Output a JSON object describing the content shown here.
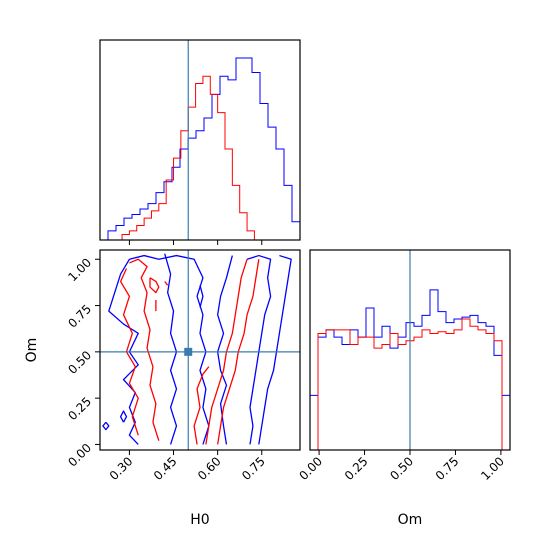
{
  "figure": {
    "type": "corner",
    "colors": {
      "truth": "#3b7bad",
      "series_a": "#0000ff",
      "series_b": "#ff0000"
    }
  },
  "chart_data": [
    {
      "panel": "H0-marginal",
      "type": "histogram",
      "x_range": [
        0.2,
        0.88
      ],
      "y_range": [
        0,
        1.0
      ],
      "truth": 0.5,
      "series": [
        {
          "color": "#0000ff",
          "values": [
            0.0,
            0.05,
            0.08,
            0.12,
            0.14,
            0.17,
            0.2,
            0.26,
            0.32,
            0.4,
            0.5,
            0.56,
            0.6,
            0.67,
            0.8,
            0.9,
            0.88,
            1.0,
            1.0,
            0.92,
            0.75,
            0.62,
            0.5,
            0.3,
            0.1
          ],
          "bin_edges": [
            0.2,
            0.2272,
            0.2544,
            0.2816,
            0.3088,
            0.336,
            0.3632,
            0.3904,
            0.4176,
            0.4448,
            0.472,
            0.4992,
            0.5264,
            0.5536,
            0.5808,
            0.608,
            0.6352,
            0.6624,
            0.6896,
            0.7168,
            0.744,
            0.7712,
            0.7984,
            0.8256,
            0.8528,
            0.88
          ]
        },
        {
          "color": "#ff0000",
          "values": [
            0.0,
            0.03,
            0.05,
            0.08,
            0.12,
            0.16,
            0.2,
            0.33,
            0.45,
            0.6,
            0.73,
            0.86,
            0.9,
            0.8,
            0.7,
            0.5,
            0.3,
            0.15,
            0.05,
            0.0
          ],
          "bin_edges": [
            0.25,
            0.275,
            0.3,
            0.325,
            0.35,
            0.375,
            0.4,
            0.425,
            0.45,
            0.475,
            0.5,
            0.525,
            0.55,
            0.575,
            0.6,
            0.625,
            0.65,
            0.675,
            0.7,
            0.725,
            0.75
          ]
        }
      ]
    },
    {
      "panel": "H0-Om-2d",
      "type": "contour",
      "xlabel": "H0",
      "ylabel": "Om",
      "x_range": [
        0.2,
        0.88
      ],
      "y_range": [
        -0.03,
        1.05
      ],
      "xticks": [
        "0.30",
        "0.45",
        "0.60",
        "0.75"
      ],
      "xtick_values": [
        0.3,
        0.45,
        0.6,
        0.75
      ],
      "yticks": [
        "0.00",
        "0.25",
        "0.50",
        "0.75",
        "1.00"
      ],
      "ytick_values": [
        0.0,
        0.25,
        0.5,
        0.75,
        1.0
      ],
      "truth": {
        "H0": 0.5,
        "Om": 0.5
      },
      "series": [
        {
          "color": "#0000ff",
          "contours": [
            [
              [
                0.3,
                1.0
              ],
              [
                0.35,
                1.02
              ],
              [
                0.4,
                1.0
              ],
              [
                0.46,
                1.02
              ],
              [
                0.52,
                1.0
              ],
              [
                0.55,
                0.9
              ],
              [
                0.53,
                0.8
              ],
              [
                0.55,
                0.7
              ],
              [
                0.54,
                0.6
              ],
              [
                0.56,
                0.5
              ],
              [
                0.54,
                0.4
              ],
              [
                0.56,
                0.3
              ],
              [
                0.55,
                0.2
              ],
              [
                0.57,
                0.1
              ],
              [
                0.55,
                0.0
              ]
            ],
            [
              [
                0.3,
                1.0
              ],
              [
                0.27,
                0.92
              ],
              [
                0.25,
                0.82
              ],
              [
                0.23,
                0.72
              ],
              [
                0.28,
                0.65
              ],
              [
                0.33,
                0.6
              ],
              [
                0.3,
                0.5
              ],
              [
                0.33,
                0.43
              ],
              [
                0.28,
                0.35
              ],
              [
                0.32,
                0.28
              ],
              [
                0.3,
                0.2
              ],
              [
                0.32,
                0.12
              ],
              [
                0.3,
                0.05
              ],
              [
                0.33,
                0.0
              ]
            ],
            [
              [
                0.22,
                0.12
              ],
              [
                0.21,
                0.1
              ],
              [
                0.22,
                0.08
              ],
              [
                0.23,
                0.1
              ],
              [
                0.22,
                0.12
              ]
            ],
            [
              [
                0.28,
                0.12
              ],
              [
                0.27,
                0.15
              ],
              [
                0.28,
                0.18
              ],
              [
                0.29,
                0.15
              ],
              [
                0.28,
                0.12
              ]
            ],
            [
              [
                0.42,
                1.03
              ],
              [
                0.44,
                0.92
              ],
              [
                0.43,
                0.82
              ],
              [
                0.45,
                0.72
              ],
              [
                0.44,
                0.6
              ],
              [
                0.46,
                0.5
              ],
              [
                0.44,
                0.4
              ],
              [
                0.46,
                0.3
              ],
              [
                0.44,
                0.2
              ],
              [
                0.46,
                0.1
              ],
              [
                0.44,
                0.0
              ]
            ],
            [
              [
                0.65,
                1.02
              ],
              [
                0.63,
                0.9
              ],
              [
                0.61,
                0.8
              ],
              [
                0.6,
                0.7
              ],
              [
                0.62,
                0.6
              ],
              [
                0.6,
                0.5
              ],
              [
                0.61,
                0.4
              ],
              [
                0.63,
                0.32
              ],
              [
                0.61,
                0.22
              ],
              [
                0.62,
                0.1
              ],
              [
                0.63,
                0.0
              ]
            ],
            [
              [
                0.7,
                1.0
              ],
              [
                0.74,
                1.02
              ],
              [
                0.78,
                1.0
              ],
              [
                0.77,
                0.9
              ],
              [
                0.78,
                0.8
              ],
              [
                0.76,
                0.7
              ],
              [
                0.75,
                0.6
              ],
              [
                0.74,
                0.5
              ],
              [
                0.73,
                0.4
              ],
              [
                0.72,
                0.3
              ],
              [
                0.71,
                0.2
              ],
              [
                0.72,
                0.1
              ],
              [
                0.71,
                0.0
              ]
            ],
            [
              [
                0.81,
                1.02
              ],
              [
                0.85,
                1.0
              ],
              [
                0.84,
                0.9
              ],
              [
                0.83,
                0.8
              ],
              [
                0.82,
                0.7
              ],
              [
                0.81,
                0.6
              ],
              [
                0.8,
                0.5
              ],
              [
                0.79,
                0.4
              ],
              [
                0.77,
                0.3
              ],
              [
                0.76,
                0.2
              ],
              [
                0.75,
                0.1
              ],
              [
                0.74,
                0.0
              ]
            ],
            [
              [
                0.54,
                0.86
              ],
              [
                0.55,
                0.8
              ],
              [
                0.54,
                0.74
              ]
            ]
          ]
        },
        {
          "color": "#ff0000",
          "contours": [
            [
              [
                0.3,
                0.98
              ],
              [
                0.33,
                1.0
              ],
              [
                0.36,
                0.96
              ],
              [
                0.34,
                0.9
              ],
              [
                0.36,
                0.82
              ],
              [
                0.35,
                0.72
              ],
              [
                0.37,
                0.62
              ],
              [
                0.36,
                0.52
              ],
              [
                0.38,
                0.42
              ],
              [
                0.37,
                0.32
              ],
              [
                0.39,
                0.22
              ],
              [
                0.38,
                0.12
              ],
              [
                0.4,
                0.02
              ]
            ],
            [
              [
                0.29,
                0.95
              ],
              [
                0.27,
                0.88
              ],
              [
                0.3,
                0.8
              ],
              [
                0.28,
                0.7
              ],
              [
                0.31,
                0.6
              ],
              [
                0.29,
                0.5
              ],
              [
                0.32,
                0.42
              ],
              [
                0.3,
                0.33
              ],
              [
                0.33,
                0.25
              ],
              [
                0.31,
                0.15
              ],
              [
                0.33,
                0.05
              ]
            ],
            [
              [
                0.39,
                0.78
              ],
              [
                0.39,
                0.72
              ]
            ],
            [
              [
                0.37,
                0.9
              ],
              [
                0.39,
                0.88
              ],
              [
                0.4,
                0.85
              ],
              [
                0.39,
                0.82
              ],
              [
                0.37,
                0.85
              ],
              [
                0.37,
                0.9
              ]
            ],
            [
              [
                0.42,
                0.88
              ],
              [
                0.43,
                0.86
              ]
            ],
            [
              [
                0.56,
                0.0
              ],
              [
                0.57,
                0.1
              ],
              [
                0.58,
                0.2
              ],
              [
                0.6,
                0.3
              ],
              [
                0.62,
                0.4
              ],
              [
                0.63,
                0.5
              ],
              [
                0.65,
                0.6
              ],
              [
                0.66,
                0.7
              ],
              [
                0.67,
                0.8
              ],
              [
                0.68,
                0.9
              ],
              [
                0.7,
                1.0
              ]
            ],
            [
              [
                0.6,
                0.0
              ],
              [
                0.61,
                0.1
              ],
              [
                0.62,
                0.2
              ],
              [
                0.64,
                0.3
              ],
              [
                0.66,
                0.4
              ],
              [
                0.67,
                0.5
              ],
              [
                0.69,
                0.6
              ],
              [
                0.7,
                0.7
              ],
              [
                0.72,
                0.8
              ],
              [
                0.73,
                0.9
              ],
              [
                0.74,
                1.0
              ]
            ],
            [
              [
                0.53,
                0.0
              ],
              [
                0.52,
                0.1
              ],
              [
                0.54,
                0.2
              ],
              [
                0.53,
                0.3
              ],
              [
                0.55,
                0.38
              ],
              [
                0.57,
                0.42
              ]
            ]
          ]
        }
      ]
    },
    {
      "panel": "Om-marginal",
      "type": "histogram",
      "xlabel": "Om",
      "x_range": [
        -0.05,
        1.05
      ],
      "y_range": [
        0,
        1.0
      ],
      "xticks": [
        "0.00",
        "0.25",
        "0.50",
        "0.75",
        "1.00"
      ],
      "xtick_values": [
        0.0,
        0.25,
        0.5,
        0.75,
        1.0
      ],
      "truth": 0.5,
      "series": [
        {
          "color": "#0000ff",
          "values": [
            0.3,
            0.62,
            0.66,
            0.62,
            0.58,
            0.66,
            0.62,
            0.78,
            0.62,
            0.68,
            0.56,
            0.62,
            0.7,
            0.68,
            0.74,
            0.88,
            0.76,
            0.7,
            0.72,
            0.73,
            0.74,
            0.7,
            0.68,
            0.52,
            0.3
          ],
          "bin_edges": [
            -0.05,
            -0.006,
            0.038,
            0.082,
            0.126,
            0.17,
            0.214,
            0.258,
            0.302,
            0.346,
            0.39,
            0.434,
            0.478,
            0.522,
            0.566,
            0.61,
            0.654,
            0.698,
            0.742,
            0.786,
            0.83,
            0.874,
            0.918,
            0.962,
            1.006,
            1.05
          ]
        },
        {
          "color": "#ff0000",
          "values": [
            0.0,
            0.64,
            0.66,
            0.66,
            0.66,
            0.58,
            0.62,
            0.62,
            0.56,
            0.58,
            0.64,
            0.58,
            0.6,
            0.62,
            0.66,
            0.64,
            0.65,
            0.64,
            0.66,
            0.72,
            0.68,
            0.66,
            0.64,
            0.6,
            0.0
          ],
          "bin_edges": [
            -0.05,
            -0.006,
            0.038,
            0.082,
            0.126,
            0.17,
            0.214,
            0.258,
            0.302,
            0.346,
            0.39,
            0.434,
            0.478,
            0.522,
            0.566,
            0.61,
            0.654,
            0.698,
            0.742,
            0.786,
            0.83,
            0.874,
            0.918,
            0.962,
            1.006,
            1.05
          ]
        }
      ]
    }
  ]
}
